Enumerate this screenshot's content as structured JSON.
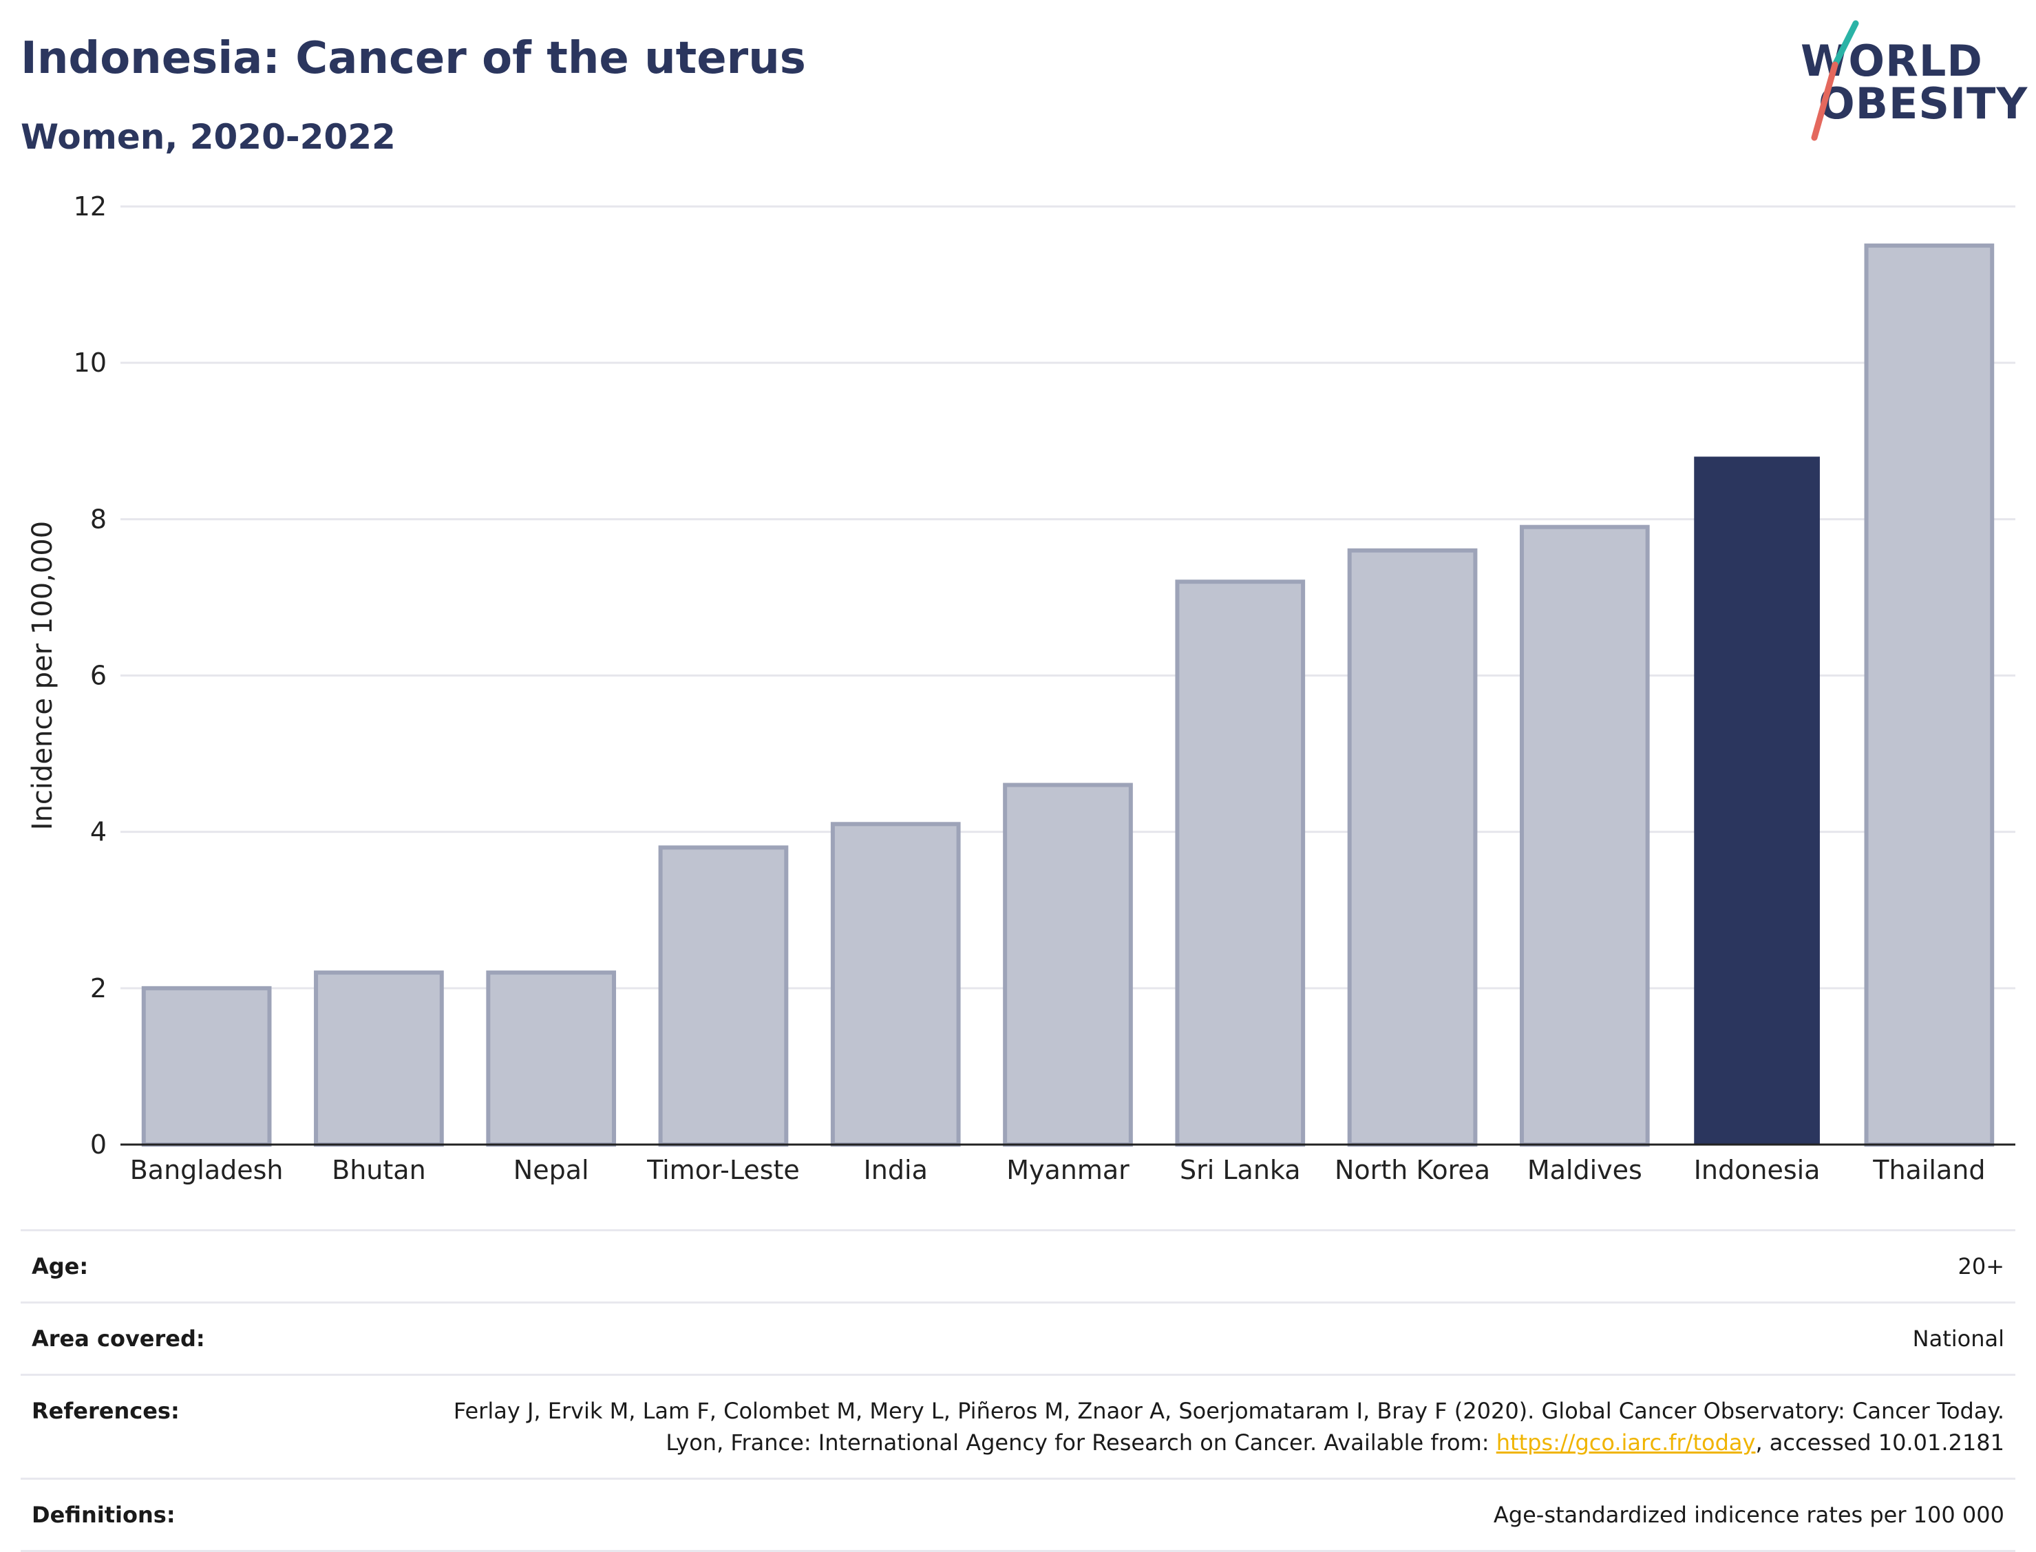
{
  "header": {
    "title": "Indonesia: Cancer of the uterus",
    "subtitle": "Women, 2020-2022"
  },
  "logo": {
    "line1": "WORLD",
    "line2": "OBESITY"
  },
  "chart_data": {
    "type": "bar",
    "ylabel": "Incidence per 100,000",
    "xlabel": "",
    "ylim": [
      0,
      12
    ],
    "yticks": [
      0,
      2,
      4,
      6,
      8,
      10,
      12
    ],
    "grid": true,
    "categories": [
      "Bangladesh",
      "Bhutan",
      "Nepal",
      "Timor-Leste",
      "India",
      "Myanmar",
      "Sri Lanka",
      "North Korea",
      "Maldives",
      "Indonesia",
      "Thailand"
    ],
    "values": [
      2.0,
      2.2,
      2.2,
      3.8,
      4.1,
      4.6,
      7.2,
      7.6,
      7.9,
      8.8,
      11.5
    ],
    "highlight": "Indonesia",
    "colors": {
      "highlight": "#2b365e",
      "default_fill": "#bfc3d0",
      "default_stroke": "#9da3b8",
      "grid": "#e6e6ec",
      "axis": "#222222"
    }
  },
  "info": {
    "age_label": "Age:",
    "age_value": "20+",
    "area_label": "Area covered:",
    "area_value": "National",
    "references_label": "References:",
    "references_text": "Ferlay J, Ervik M, Lam F, Colombet M, Mery L, Piñeros M, Znaor A, Soerjomataram I, Bray F (2020). Global Cancer Observatory: Cancer Today. Lyon, France: International Agency for Research on Cancer. Available from: ",
    "references_link": "https://gco.iarc.fr/today",
    "references_suffix": ", accessed 10.01.2181",
    "definitions_label": "Definitions:",
    "definitions_value": "Age-standardized indicence rates per 100 000"
  }
}
